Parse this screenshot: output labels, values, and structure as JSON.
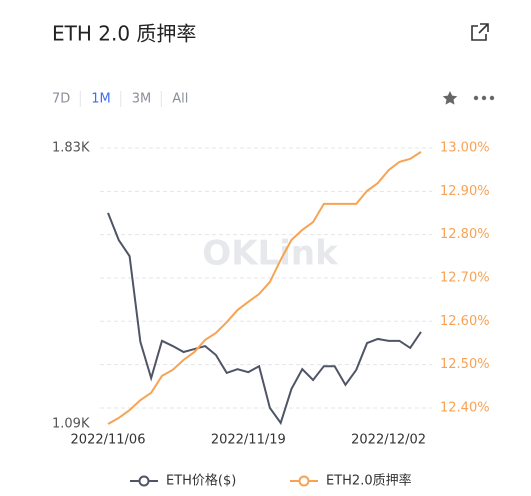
{
  "header": {
    "title": "ETH 2.0 质押率",
    "tabs": [
      "7D",
      "1M",
      "3M",
      "All"
    ],
    "active_tab": 1
  },
  "chart_data": {
    "type": "line",
    "watermark": "OKLink",
    "categories": [
      "2022/11/06",
      null,
      null,
      null,
      null,
      null,
      null,
      null,
      null,
      null,
      null,
      null,
      null,
      "2022/11/19",
      null,
      null,
      null,
      null,
      null,
      null,
      null,
      null,
      null,
      null,
      null,
      null,
      "2022/12/02",
      null,
      null,
      null
    ],
    "series": [
      {
        "name": "ETH价格($)",
        "color": "#4f5566",
        "axis": "y",
        "values": [
          1656,
          1583,
          1540,
          1310,
          1213,
          1313,
          1299,
          1283,
          1291,
          1299,
          1275,
          1227,
          1237,
          1229,
          1245,
          1133,
          1093,
          1184,
          1237,
          1208,
          1245,
          1245,
          1195,
          1235,
          1307,
          1318,
          1313,
          1313,
          1294,
          1337
        ]
      },
      {
        "name": "ETH2.0质押率",
        "color": "#f7a356",
        "axis": "y2",
        "values": [
          12.363,
          12.377,
          12.395,
          12.418,
          12.435,
          12.474,
          12.488,
          12.511,
          12.529,
          12.557,
          12.573,
          12.598,
          12.626,
          12.645,
          12.663,
          12.691,
          12.742,
          12.788,
          12.811,
          12.829,
          12.871,
          12.871,
          12.871,
          12.871,
          12.901,
          12.919,
          12.949,
          12.968,
          12.975,
          12.991
        ]
      }
    ],
    "ylim": [
      1090,
      1830
    ],
    "yticks": [
      {
        "value": 1830,
        "label": "1.83K"
      },
      {
        "value": 1090,
        "label": "1.09K"
      }
    ],
    "y2lim": [
      12.363,
      13.0
    ],
    "y2ticks": [
      {
        "value": 12.4,
        "label": "12.40%"
      },
      {
        "value": 12.5,
        "label": "12.50%"
      },
      {
        "value": 12.6,
        "label": "12.60%"
      },
      {
        "value": 12.7,
        "label": "12.70%"
      },
      {
        "value": 12.8,
        "label": "12.80%"
      },
      {
        "value": 12.9,
        "label": "12.90%"
      },
      {
        "value": 13.0,
        "label": "13.00%"
      }
    ],
    "grid": true,
    "legend": "bottom"
  }
}
